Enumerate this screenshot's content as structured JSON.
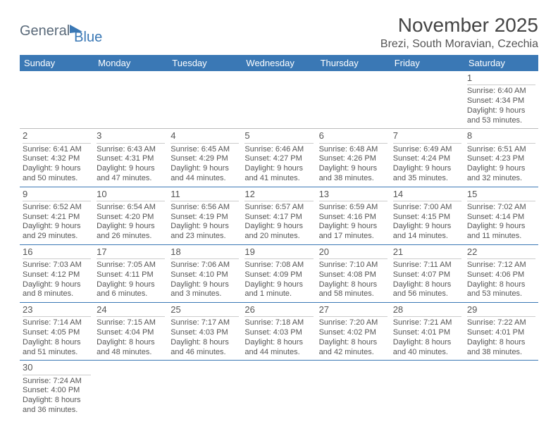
{
  "logo": {
    "part1": "General",
    "part2": "Blue"
  },
  "title": "November 2025",
  "location": "Brezi, South Moravian, Czechia",
  "day_headers": [
    "Sunday",
    "Monday",
    "Tuesday",
    "Wednesday",
    "Thursday",
    "Friday",
    "Saturday"
  ],
  "header_bg": "#3a78b5",
  "header_fg": "#ffffff",
  "row_border": "#3a78b5",
  "weeks": [
    [
      null,
      null,
      null,
      null,
      null,
      null,
      {
        "n": "1",
        "sr": "6:40 AM",
        "ss": "4:34 PM",
        "dl": "9 hours and 53 minutes."
      }
    ],
    [
      {
        "n": "2",
        "sr": "6:41 AM",
        "ss": "4:32 PM",
        "dl": "9 hours and 50 minutes."
      },
      {
        "n": "3",
        "sr": "6:43 AM",
        "ss": "4:31 PM",
        "dl": "9 hours and 47 minutes."
      },
      {
        "n": "4",
        "sr": "6:45 AM",
        "ss": "4:29 PM",
        "dl": "9 hours and 44 minutes."
      },
      {
        "n": "5",
        "sr": "6:46 AM",
        "ss": "4:27 PM",
        "dl": "9 hours and 41 minutes."
      },
      {
        "n": "6",
        "sr": "6:48 AM",
        "ss": "4:26 PM",
        "dl": "9 hours and 38 minutes."
      },
      {
        "n": "7",
        "sr": "6:49 AM",
        "ss": "4:24 PM",
        "dl": "9 hours and 35 minutes."
      },
      {
        "n": "8",
        "sr": "6:51 AM",
        "ss": "4:23 PM",
        "dl": "9 hours and 32 minutes."
      }
    ],
    [
      {
        "n": "9",
        "sr": "6:52 AM",
        "ss": "4:21 PM",
        "dl": "9 hours and 29 minutes."
      },
      {
        "n": "10",
        "sr": "6:54 AM",
        "ss": "4:20 PM",
        "dl": "9 hours and 26 minutes."
      },
      {
        "n": "11",
        "sr": "6:56 AM",
        "ss": "4:19 PM",
        "dl": "9 hours and 23 minutes."
      },
      {
        "n": "12",
        "sr": "6:57 AM",
        "ss": "4:17 PM",
        "dl": "9 hours and 20 minutes."
      },
      {
        "n": "13",
        "sr": "6:59 AM",
        "ss": "4:16 PM",
        "dl": "9 hours and 17 minutes."
      },
      {
        "n": "14",
        "sr": "7:00 AM",
        "ss": "4:15 PM",
        "dl": "9 hours and 14 minutes."
      },
      {
        "n": "15",
        "sr": "7:02 AM",
        "ss": "4:14 PM",
        "dl": "9 hours and 11 minutes."
      }
    ],
    [
      {
        "n": "16",
        "sr": "7:03 AM",
        "ss": "4:12 PM",
        "dl": "9 hours and 8 minutes."
      },
      {
        "n": "17",
        "sr": "7:05 AM",
        "ss": "4:11 PM",
        "dl": "9 hours and 6 minutes."
      },
      {
        "n": "18",
        "sr": "7:06 AM",
        "ss": "4:10 PM",
        "dl": "9 hours and 3 minutes."
      },
      {
        "n": "19",
        "sr": "7:08 AM",
        "ss": "4:09 PM",
        "dl": "9 hours and 1 minute."
      },
      {
        "n": "20",
        "sr": "7:10 AM",
        "ss": "4:08 PM",
        "dl": "8 hours and 58 minutes."
      },
      {
        "n": "21",
        "sr": "7:11 AM",
        "ss": "4:07 PM",
        "dl": "8 hours and 56 minutes."
      },
      {
        "n": "22",
        "sr": "7:12 AM",
        "ss": "4:06 PM",
        "dl": "8 hours and 53 minutes."
      }
    ],
    [
      {
        "n": "23",
        "sr": "7:14 AM",
        "ss": "4:05 PM",
        "dl": "8 hours and 51 minutes."
      },
      {
        "n": "24",
        "sr": "7:15 AM",
        "ss": "4:04 PM",
        "dl": "8 hours and 48 minutes."
      },
      {
        "n": "25",
        "sr": "7:17 AM",
        "ss": "4:03 PM",
        "dl": "8 hours and 46 minutes."
      },
      {
        "n": "26",
        "sr": "7:18 AM",
        "ss": "4:03 PM",
        "dl": "8 hours and 44 minutes."
      },
      {
        "n": "27",
        "sr": "7:20 AM",
        "ss": "4:02 PM",
        "dl": "8 hours and 42 minutes."
      },
      {
        "n": "28",
        "sr": "7:21 AM",
        "ss": "4:01 PM",
        "dl": "8 hours and 40 minutes."
      },
      {
        "n": "29",
        "sr": "7:22 AM",
        "ss": "4:01 PM",
        "dl": "8 hours and 38 minutes."
      }
    ],
    [
      {
        "n": "30",
        "sr": "7:24 AM",
        "ss": "4:00 PM",
        "dl": "8 hours and 36 minutes."
      },
      null,
      null,
      null,
      null,
      null,
      null
    ]
  ],
  "labels": {
    "sunrise": "Sunrise:",
    "sunset": "Sunset:",
    "daylight": "Daylight:"
  }
}
